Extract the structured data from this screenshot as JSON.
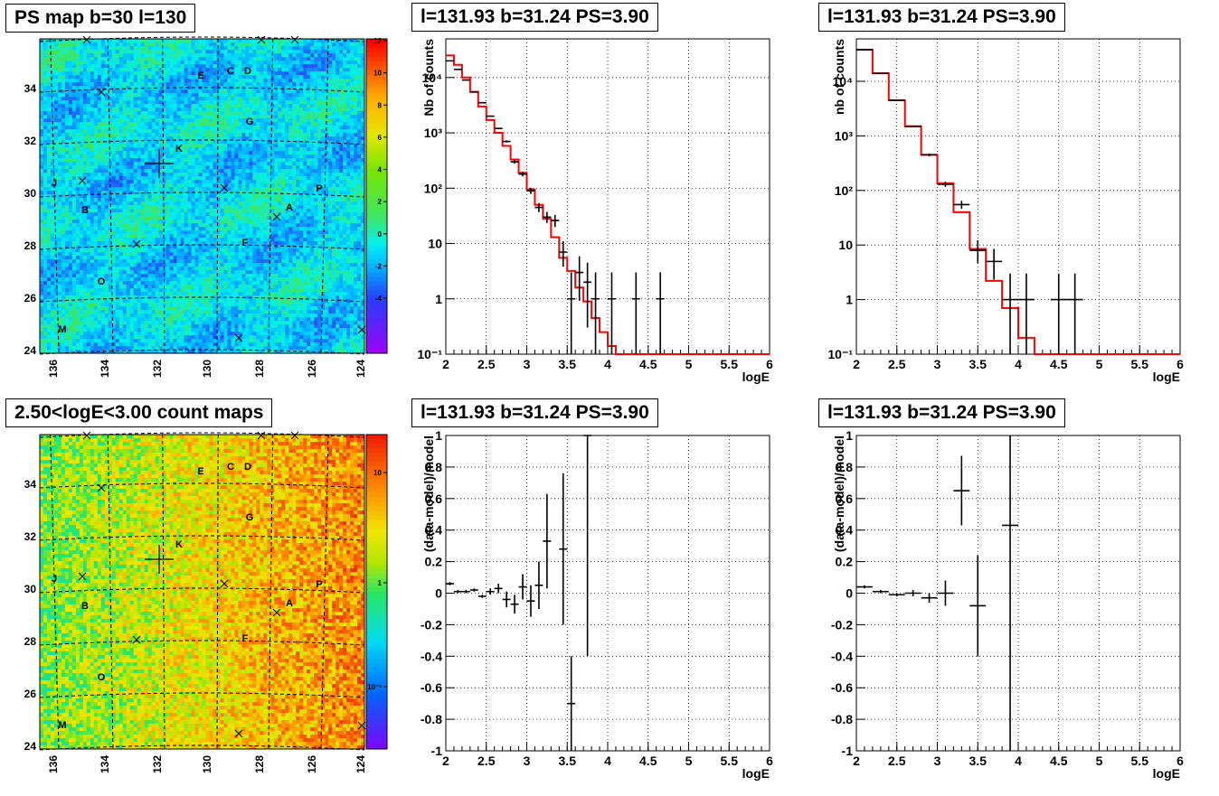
{
  "titles": {
    "ps_map": "PS map b=30 l=130",
    "count_map": "2.50<logE<3.00 count maps",
    "spec_left": "l=131.93 b=31.24 PS=3.90",
    "spec_right": "l=131.93 b=31.24 PS=3.90",
    "resid_left": "l=131.93 b=31.24 PS=3.90",
    "resid_right": "l=131.93 b=31.24 PS=3.90"
  },
  "maps": {
    "x_ticks": [
      "136",
      "134",
      "132",
      "130",
      "128",
      "126",
      "124"
    ],
    "y_ticks": [
      "34",
      "32",
      "30",
      "28",
      "26",
      "24"
    ],
    "ps_scale_ticks": [
      "12",
      "10",
      "8",
      "6",
      "4",
      "2",
      "0",
      "-2",
      "-4"
    ],
    "count_scale_ticks": [
      "10",
      "1",
      "10⁻¹"
    ],
    "source_labels": [
      "E",
      "C",
      "D",
      "G",
      "K",
      "J",
      "P",
      "B",
      "A",
      "F",
      "O",
      "M"
    ]
  },
  "chart_data": [
    {
      "type": "line",
      "title": "l=131.93 b=31.24 PS=3.90",
      "xlabel": "logE",
      "ylabel": "Nb of counts",
      "xlim": [
        2,
        6
      ],
      "ylim": [
        0.1,
        50000
      ],
      "log_y": true,
      "grid": true,
      "x_ticks": [
        "2",
        "2.5",
        "3",
        "3.5",
        "4",
        "4.5",
        "5",
        "5.5",
        "6"
      ],
      "y_ticks": [
        "10⁻¹",
        "1",
        "10",
        "10²",
        "10³",
        "10⁴"
      ],
      "series": [
        {
          "kind": "data",
          "x": [
            2.05,
            2.15,
            2.25,
            2.35,
            2.45,
            2.55,
            2.65,
            2.75,
            2.85,
            2.95,
            3.05,
            3.15,
            3.25,
            3.35,
            3.45,
            3.55,
            3.65,
            3.75,
            3.85,
            4.05,
            4.35,
            4.65
          ],
          "y": [
            20000,
            14000,
            9000,
            5500,
            3500,
            2000,
            1200,
            700,
            300,
            180,
            90,
            45,
            30,
            26,
            7,
            1,
            3,
            2,
            1,
            1,
            1,
            1
          ]
        },
        {
          "kind": "model",
          "color": "#ff0000",
          "x": [
            2.0,
            2.1,
            2.2,
            2.3,
            2.4,
            2.5,
            2.6,
            2.7,
            2.8,
            2.9,
            3.0,
            3.1,
            3.2,
            3.3,
            3.4,
            3.5,
            3.6,
            3.7,
            3.8,
            3.9,
            4.0,
            4.1,
            4.2
          ],
          "y": [
            25000,
            17000,
            10000,
            5500,
            3000,
            1700,
            1000,
            580,
            330,
            190,
            95,
            50,
            28,
            13,
            5.5,
            3.2,
            1.6,
            0.9,
            0.45,
            0.25,
            0.14,
            0.1,
            0.1
          ]
        }
      ]
    },
    {
      "type": "line",
      "title": "l=131.93 b=31.24 PS=3.90",
      "xlabel": "logE",
      "ylabel": "nb of counts",
      "xlim": [
        2,
        6
      ],
      "ylim": [
        0.1,
        60000
      ],
      "log_y": true,
      "grid": true,
      "x_ticks": [
        "2",
        "2.5",
        "3",
        "3.5",
        "4",
        "4.5",
        "5",
        "5.5",
        "6"
      ],
      "y_ticks": [
        "10⁻¹",
        "1",
        "10",
        "10²",
        "10³",
        "10⁴"
      ],
      "series": [
        {
          "kind": "data",
          "x": [
            2.1,
            2.3,
            2.5,
            2.7,
            2.9,
            3.1,
            3.3,
            3.5,
            3.7,
            3.9,
            4.1,
            4.5,
            4.7
          ],
          "y": [
            38000,
            14000,
            4500,
            1500,
            450,
            130,
            55,
            8,
            5,
            1,
            1,
            1,
            1
          ]
        },
        {
          "kind": "model",
          "color": "#ff0000",
          "x": [
            2.0,
            2.2,
            2.4,
            2.6,
            2.8,
            3.0,
            3.2,
            3.4,
            3.6,
            3.8,
            4.0,
            4.2
          ],
          "y": [
            38000,
            14000,
            4500,
            1500,
            450,
            135,
            40,
            8.5,
            2.2,
            0.7,
            0.2,
            0.1
          ]
        }
      ]
    },
    {
      "type": "scatter",
      "title": "l=131.93 b=31.24 PS=3.90",
      "xlabel": "logE",
      "ylabel": "(data-model)/model",
      "xlim": [
        2,
        6
      ],
      "ylim": [
        -1,
        1
      ],
      "grid": true,
      "x_ticks": [
        "2",
        "2.5",
        "3",
        "3.5",
        "4",
        "4.5",
        "5",
        "5.5",
        "6"
      ],
      "y_ticks": [
        "-1",
        "-0.8",
        "-0.6",
        "-0.4",
        "-0.2",
        "0",
        "0.2",
        "0.4",
        "0.6",
        "0.8",
        "1"
      ],
      "x": [
        2.05,
        2.15,
        2.25,
        2.35,
        2.45,
        2.55,
        2.65,
        2.75,
        2.85,
        2.95,
        3.05,
        3.15,
        3.25,
        3.45,
        3.55,
        3.75
      ],
      "y": [
        0.06,
        0.01,
        0.01,
        0.02,
        -0.02,
        0.01,
        0.03,
        -0.04,
        -0.07,
        0.04,
        -0.05,
        0.05,
        0.33,
        0.28,
        -0.7,
        1.0
      ],
      "err": [
        0.01,
        0.01,
        0.01,
        0.01,
        0.01,
        0.02,
        0.03,
        0.05,
        0.06,
        0.08,
        0.1,
        0.15,
        0.3,
        0.48,
        0.3,
        1.4
      ]
    },
    {
      "type": "scatter",
      "title": "l=131.93 b=31.24 PS=3.90",
      "xlabel": "logE",
      "ylabel": "(data-model)/model",
      "xlim": [
        2,
        6
      ],
      "ylim": [
        -1,
        1
      ],
      "grid": true,
      "x_ticks": [
        "2",
        "2.5",
        "3",
        "3.5",
        "4",
        "4.5",
        "5",
        "5.5",
        "6"
      ],
      "y_ticks": [
        "-1",
        "-0.8",
        "-0.6",
        "-0.4",
        "-0.2",
        "0",
        "0.2",
        "0.4",
        "0.6",
        "0.8",
        "1"
      ],
      "x": [
        2.1,
        2.3,
        2.5,
        2.7,
        2.9,
        3.1,
        3.3,
        3.5,
        3.9
      ],
      "y": [
        0.04,
        0.01,
        -0.01,
        0.0,
        -0.03,
        0.0,
        0.65,
        -0.08,
        0.43
      ],
      "err": [
        0.01,
        0.01,
        0.01,
        0.02,
        0.03,
        0.08,
        0.22,
        0.32,
        1.5
      ]
    }
  ]
}
